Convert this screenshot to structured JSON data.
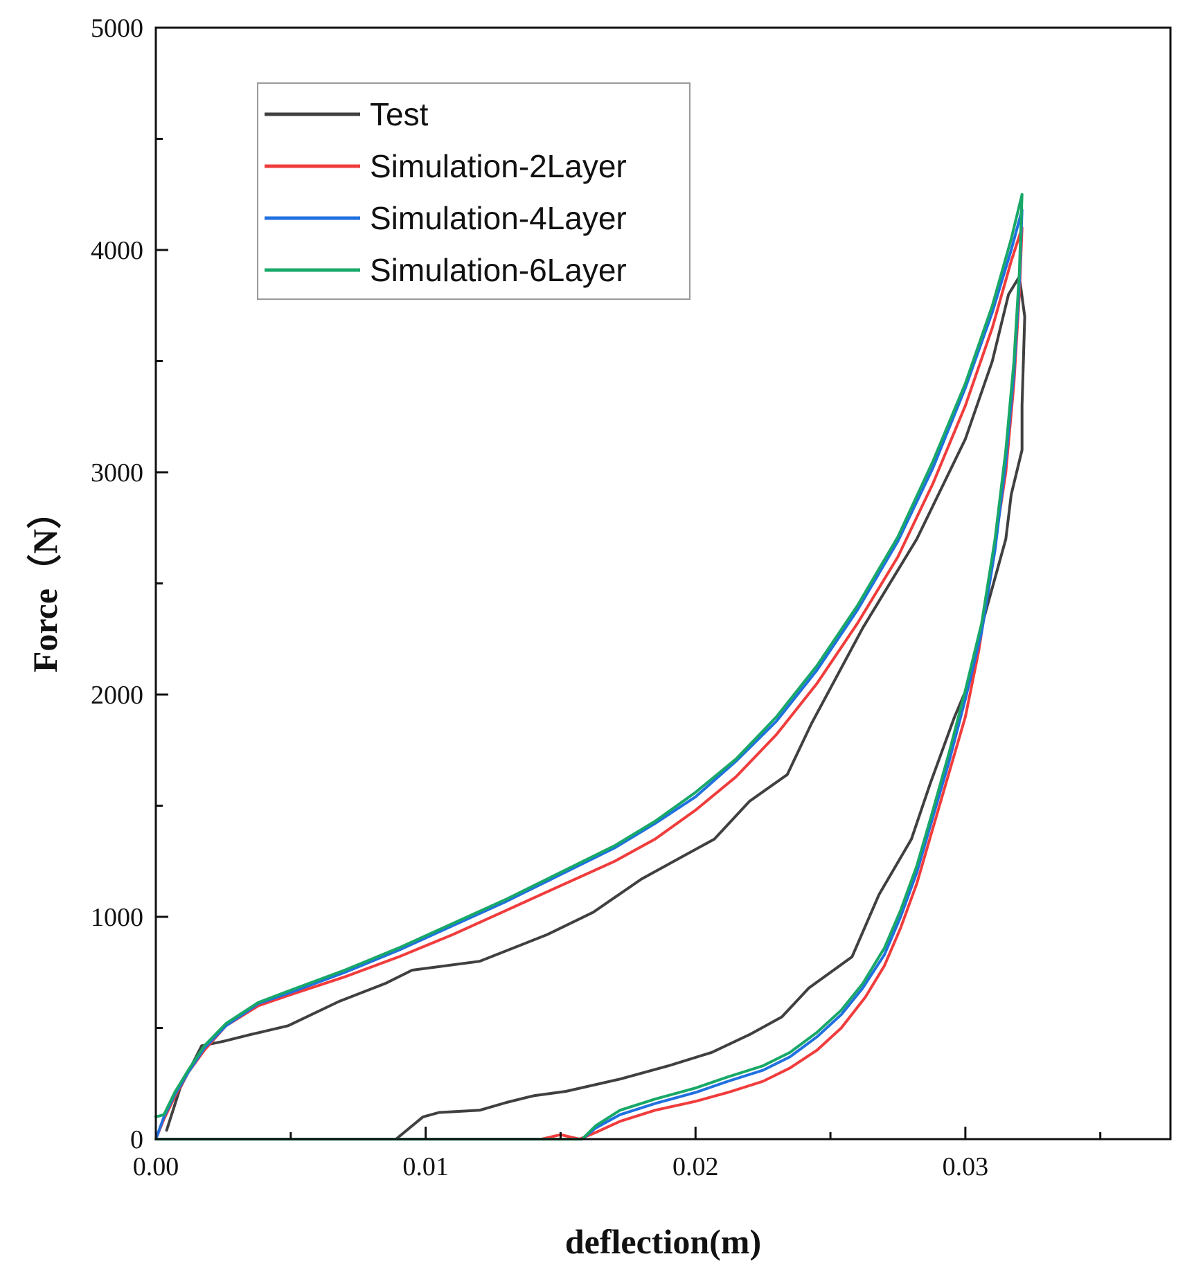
{
  "chart_data": {
    "type": "line",
    "title": "",
    "xlabel": "deflection(m)",
    "ylabel": "Force（N）",
    "xlim": [
      0,
      0.0376
    ],
    "ylim": [
      0,
      5000
    ],
    "x_ticks": [
      0.0,
      0.01,
      0.02,
      0.03
    ],
    "x_tick_labels": [
      "0.00",
      "0.01",
      "0.02",
      "0.03"
    ],
    "y_ticks": [
      0,
      1000,
      2000,
      3000,
      4000,
      5000
    ],
    "y_tick_labels": [
      "0",
      "1000",
      "2000",
      "3000",
      "4000",
      "5000"
    ],
    "grid": false,
    "legend_position": "top-left",
    "series": [
      {
        "name": "Test",
        "color": "#404040",
        "points": [
          [
            0.0004,
            40
          ],
          [
            0.0009,
            230
          ],
          [
            0.0017,
            420
          ],
          [
            0.0025,
            440
          ],
          [
            0.0035,
            470
          ],
          [
            0.0049,
            510
          ],
          [
            0.0068,
            620
          ],
          [
            0.0085,
            700
          ],
          [
            0.0095,
            760
          ],
          [
            0.012,
            800
          ],
          [
            0.0145,
            920
          ],
          [
            0.0162,
            1020
          ],
          [
            0.018,
            1170
          ],
          [
            0.0195,
            1270
          ],
          [
            0.0207,
            1350
          ],
          [
            0.022,
            1520
          ],
          [
            0.0234,
            1640
          ],
          [
            0.0243,
            1870
          ],
          [
            0.0262,
            2300
          ],
          [
            0.0282,
            2700
          ],
          [
            0.03,
            3150
          ],
          [
            0.031,
            3500
          ],
          [
            0.0316,
            3800
          ],
          [
            0.032,
            3880
          ],
          [
            0.0322,
            3700
          ],
          [
            0.0321,
            3300
          ],
          [
            0.0321,
            3100
          ],
          [
            0.0317,
            2900
          ],
          [
            0.0315,
            2700
          ],
          [
            0.0307,
            2350
          ],
          [
            0.0303,
            2100
          ],
          [
            0.0296,
            1900
          ],
          [
            0.0287,
            1600
          ],
          [
            0.028,
            1350
          ],
          [
            0.0268,
            1100
          ],
          [
            0.0258,
            820
          ],
          [
            0.0242,
            680
          ],
          [
            0.0232,
            550
          ],
          [
            0.022,
            470
          ],
          [
            0.0206,
            390
          ],
          [
            0.019,
            330
          ],
          [
            0.0172,
            270
          ],
          [
            0.0152,
            215
          ],
          [
            0.014,
            195
          ],
          [
            0.013,
            165
          ],
          [
            0.012,
            130
          ],
          [
            0.0105,
            120
          ],
          [
            0.0099,
            100
          ],
          [
            0.0089,
            0
          ]
        ]
      },
      {
        "name": "Simulation-2Layer",
        "color": "#f03c3c",
        "points": [
          [
            0.0,
            0
          ],
          [
            0.0003,
            90
          ],
          [
            0.0007,
            190
          ],
          [
            0.0012,
            300
          ],
          [
            0.0018,
            400
          ],
          [
            0.0026,
            510
          ],
          [
            0.0038,
            600
          ],
          [
            0.005,
            650
          ],
          [
            0.007,
            730
          ],
          [
            0.009,
            820
          ],
          [
            0.011,
            920
          ],
          [
            0.013,
            1030
          ],
          [
            0.015,
            1140
          ],
          [
            0.017,
            1250
          ],
          [
            0.0185,
            1350
          ],
          [
            0.02,
            1480
          ],
          [
            0.0215,
            1630
          ],
          [
            0.023,
            1820
          ],
          [
            0.0245,
            2050
          ],
          [
            0.026,
            2320
          ],
          [
            0.0275,
            2620
          ],
          [
            0.0288,
            2950
          ],
          [
            0.03,
            3300
          ],
          [
            0.031,
            3650
          ],
          [
            0.0317,
            3950
          ],
          [
            0.0321,
            4100
          ],
          [
            0.032,
            3800
          ],
          [
            0.0318,
            3400
          ],
          [
            0.0315,
            3000
          ],
          [
            0.031,
            2600
          ],
          [
            0.0305,
            2200
          ],
          [
            0.03,
            1900
          ],
          [
            0.0294,
            1650
          ],
          [
            0.0288,
            1400
          ],
          [
            0.0282,
            1150
          ],
          [
            0.0276,
            950
          ],
          [
            0.027,
            780
          ],
          [
            0.0263,
            640
          ],
          [
            0.0254,
            500
          ],
          [
            0.0245,
            400
          ],
          [
            0.0235,
            320
          ],
          [
            0.0225,
            260
          ],
          [
            0.0212,
            210
          ],
          [
            0.02,
            170
          ],
          [
            0.0185,
            130
          ],
          [
            0.0172,
            80
          ],
          [
            0.0163,
            30
          ],
          [
            0.0157,
            0
          ],
          [
            0.015,
            20
          ],
          [
            0.0143,
            0
          ],
          [
            0.0,
            0
          ]
        ]
      },
      {
        "name": "Simulation-4Layer",
        "color": "#2070e0",
        "points": [
          [
            0.0,
            0
          ],
          [
            0.0003,
            100
          ],
          [
            0.0007,
            200
          ],
          [
            0.0012,
            300
          ],
          [
            0.0018,
            410
          ],
          [
            0.0026,
            510
          ],
          [
            0.0038,
            610
          ],
          [
            0.005,
            660
          ],
          [
            0.007,
            750
          ],
          [
            0.009,
            850
          ],
          [
            0.011,
            960
          ],
          [
            0.013,
            1070
          ],
          [
            0.015,
            1190
          ],
          [
            0.017,
            1310
          ],
          [
            0.0185,
            1420
          ],
          [
            0.02,
            1540
          ],
          [
            0.0215,
            1700
          ],
          [
            0.023,
            1880
          ],
          [
            0.0245,
            2110
          ],
          [
            0.026,
            2380
          ],
          [
            0.0275,
            2690
          ],
          [
            0.0288,
            3020
          ],
          [
            0.03,
            3380
          ],
          [
            0.031,
            3720
          ],
          [
            0.0317,
            4000
          ],
          [
            0.0321,
            4180
          ],
          [
            0.032,
            3850
          ],
          [
            0.0318,
            3450
          ],
          [
            0.0315,
            3050
          ],
          [
            0.0311,
            2650
          ],
          [
            0.0306,
            2280
          ],
          [
            0.03,
            1980
          ],
          [
            0.0294,
            1700
          ],
          [
            0.0288,
            1450
          ],
          [
            0.0282,
            1200
          ],
          [
            0.0276,
            1000
          ],
          [
            0.027,
            830
          ],
          [
            0.0262,
            680
          ],
          [
            0.0254,
            560
          ],
          [
            0.0245,
            460
          ],
          [
            0.0235,
            370
          ],
          [
            0.0225,
            310
          ],
          [
            0.0212,
            260
          ],
          [
            0.02,
            210
          ],
          [
            0.0185,
            160
          ],
          [
            0.0172,
            110
          ],
          [
            0.0163,
            50
          ],
          [
            0.0158,
            0
          ],
          [
            0.0,
            0
          ]
        ]
      },
      {
        "name": "Simulation-6Layer",
        "color": "#18a868",
        "points": [
          [
            0.0,
            100
          ],
          [
            0.0003,
            110
          ],
          [
            0.0007,
            210
          ],
          [
            0.0012,
            310
          ],
          [
            0.0018,
            420
          ],
          [
            0.0026,
            520
          ],
          [
            0.0038,
            615
          ],
          [
            0.005,
            670
          ],
          [
            0.007,
            760
          ],
          [
            0.009,
            860
          ],
          [
            0.011,
            970
          ],
          [
            0.013,
            1080
          ],
          [
            0.015,
            1200
          ],
          [
            0.017,
            1320
          ],
          [
            0.0185,
            1430
          ],
          [
            0.02,
            1560
          ],
          [
            0.0215,
            1710
          ],
          [
            0.023,
            1900
          ],
          [
            0.0245,
            2130
          ],
          [
            0.026,
            2400
          ],
          [
            0.0275,
            2710
          ],
          [
            0.0288,
            3050
          ],
          [
            0.03,
            3400
          ],
          [
            0.031,
            3750
          ],
          [
            0.0317,
            4050
          ],
          [
            0.0321,
            4250
          ],
          [
            0.032,
            3900
          ],
          [
            0.0318,
            3500
          ],
          [
            0.0315,
            3100
          ],
          [
            0.0311,
            2700
          ],
          [
            0.0306,
            2320
          ],
          [
            0.03,
            2020
          ],
          [
            0.0294,
            1740
          ],
          [
            0.0288,
            1480
          ],
          [
            0.0282,
            1230
          ],
          [
            0.0276,
            1030
          ],
          [
            0.027,
            860
          ],
          [
            0.0262,
            700
          ],
          [
            0.0254,
            580
          ],
          [
            0.0245,
            480
          ],
          [
            0.0235,
            390
          ],
          [
            0.0225,
            330
          ],
          [
            0.0212,
            280
          ],
          [
            0.02,
            230
          ],
          [
            0.0185,
            180
          ],
          [
            0.0172,
            130
          ],
          [
            0.0163,
            60
          ],
          [
            0.0158,
            0
          ],
          [
            0.0,
            0
          ]
        ]
      }
    ]
  }
}
